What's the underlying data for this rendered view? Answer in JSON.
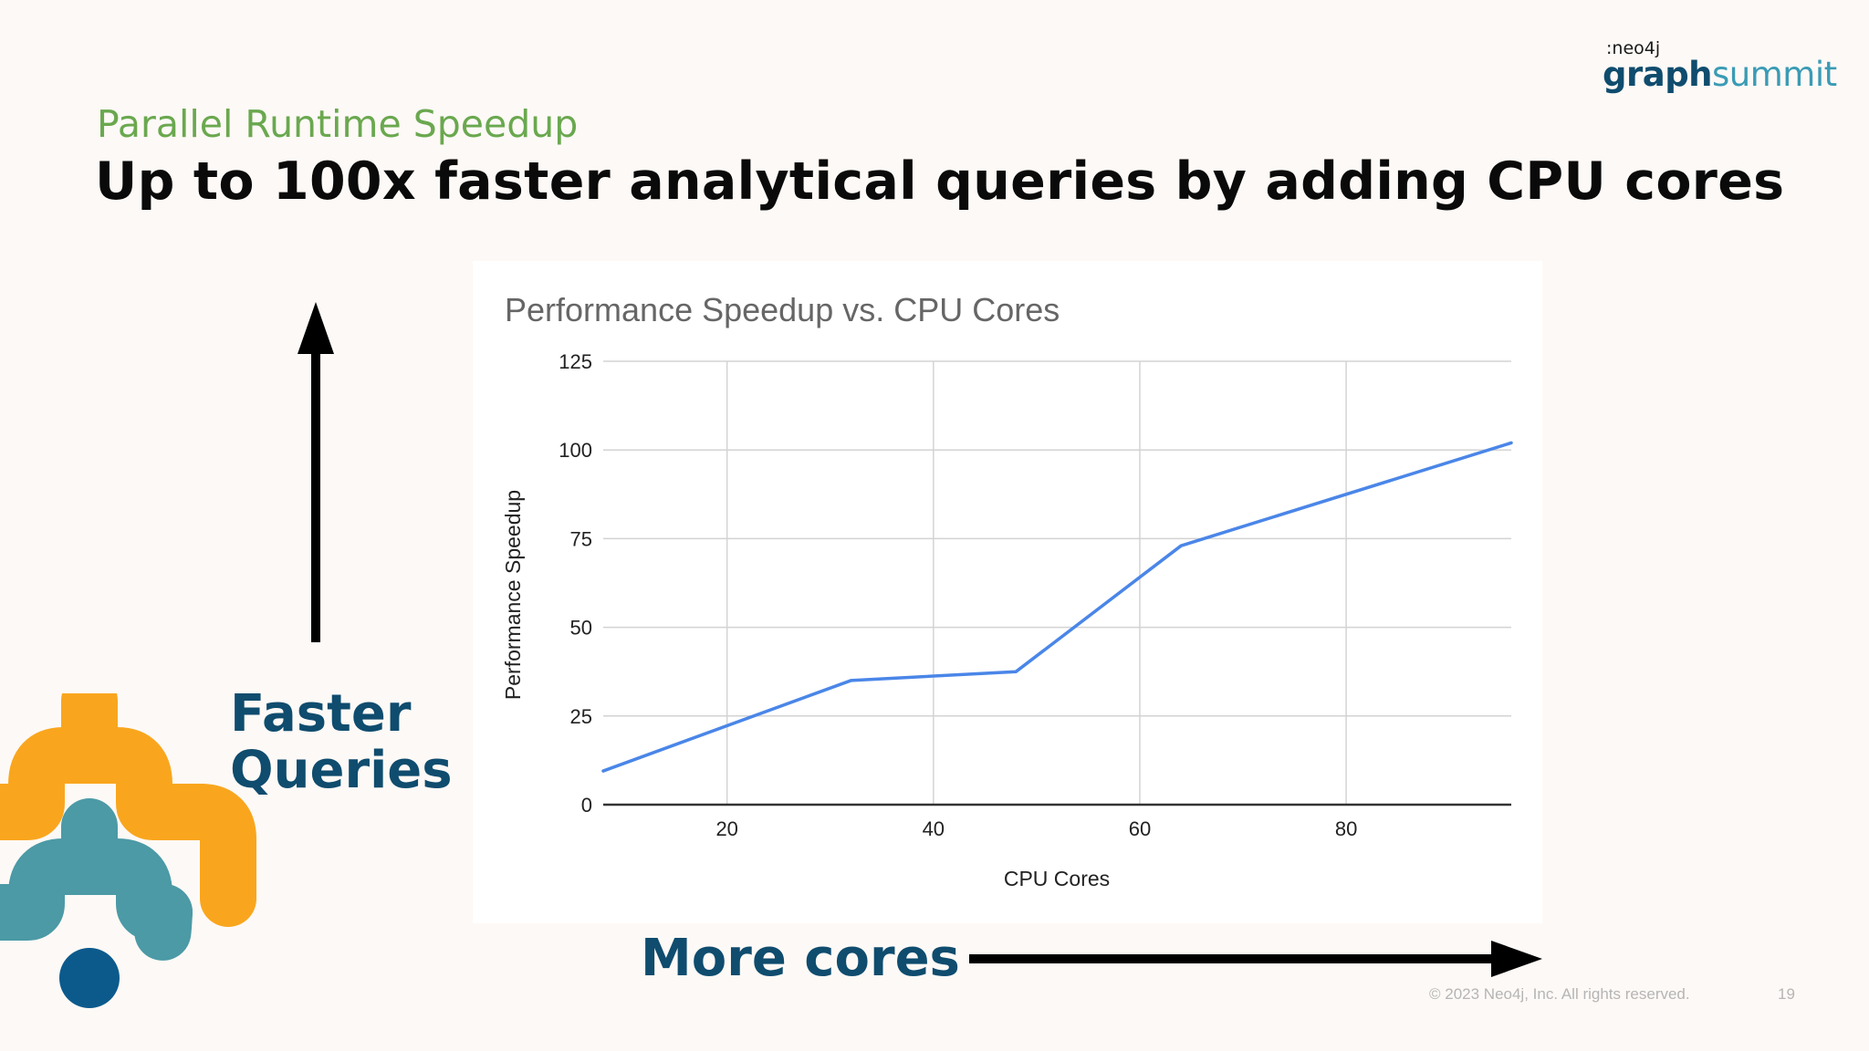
{
  "slide": {
    "subtitle": "Parallel Runtime Speedup",
    "title": "Up to 100x faster analytical queries by adding CPU cores",
    "faster_line1": "Faster",
    "faster_line2": "Queries",
    "more_cores": "More cores",
    "copyright": "© 2023 Neo4j, Inc. All rights reserved.",
    "page_number": "19"
  },
  "logo": {
    "neo": ":neo4j",
    "graph": "graph",
    "summit": "summit"
  },
  "colors": {
    "subtitle": "#6aa84f",
    "label": "#0f4c6e",
    "line": "#4a86e8",
    "orange": "#f9a61e",
    "teal": "#4b9aa6",
    "navy": "#0c5a8c"
  },
  "chart_data": {
    "type": "line",
    "title": "Performance Speedup vs. CPU Cores",
    "xlabel": "CPU Cores",
    "ylabel": "Performance Speedup",
    "xlim": [
      8,
      96
    ],
    "ylim": [
      0,
      125
    ],
    "xticks": [
      20,
      40,
      60,
      80
    ],
    "yticks": [
      0,
      25,
      50,
      75,
      100,
      125
    ],
    "grid": true,
    "legend": "none",
    "series": [
      {
        "x": [
          8,
          32,
          48,
          64,
          96
        ],
        "y": [
          9.5,
          35,
          37.5,
          73,
          102
        ]
      }
    ]
  }
}
